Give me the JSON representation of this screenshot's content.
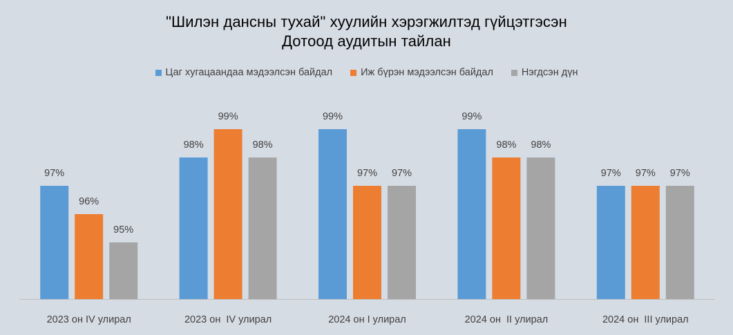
{
  "chart_data": {
    "type": "bar",
    "title_line1": "\"Шилэн дансны тухай\"  хуулийн  хэрэгжилтэд  гүйцэтгэсэн",
    "title_line2": "Дотоод аудитын тайлан",
    "categories": [
      "2023 он IV улирал",
      "2023 он  IV улирал",
      "2024 он I улирал",
      "2024 он  II улирал",
      "2024 он  III улирал"
    ],
    "series": [
      {
        "name": "Цаг хугацаандаа мэдээлсэн байдал",
        "color": "#5b9bd5",
        "values": [
          97,
          98,
          99,
          99,
          97
        ],
        "labels": [
          "97%",
          "98%",
          "99%",
          "99%",
          "97%"
        ]
      },
      {
        "name": "Иж бүрэн мэдээлсэн байдал",
        "color": "#ed7d31",
        "values": [
          96,
          99,
          97,
          98,
          97
        ],
        "labels": [
          "96%",
          "99%",
          "97%",
          "98%",
          "97%"
        ]
      },
      {
        "name": "Нэгдсэн дүн",
        "color": "#a5a5a5",
        "values": [
          95,
          98,
          97,
          98,
          97
        ],
        "labels": [
          "95%",
          "98%",
          "97%",
          "98%",
          "97%"
        ]
      }
    ],
    "ylim": [
      93,
      99
    ],
    "legend_position": "top",
    "grid": false,
    "data_labels": true
  }
}
